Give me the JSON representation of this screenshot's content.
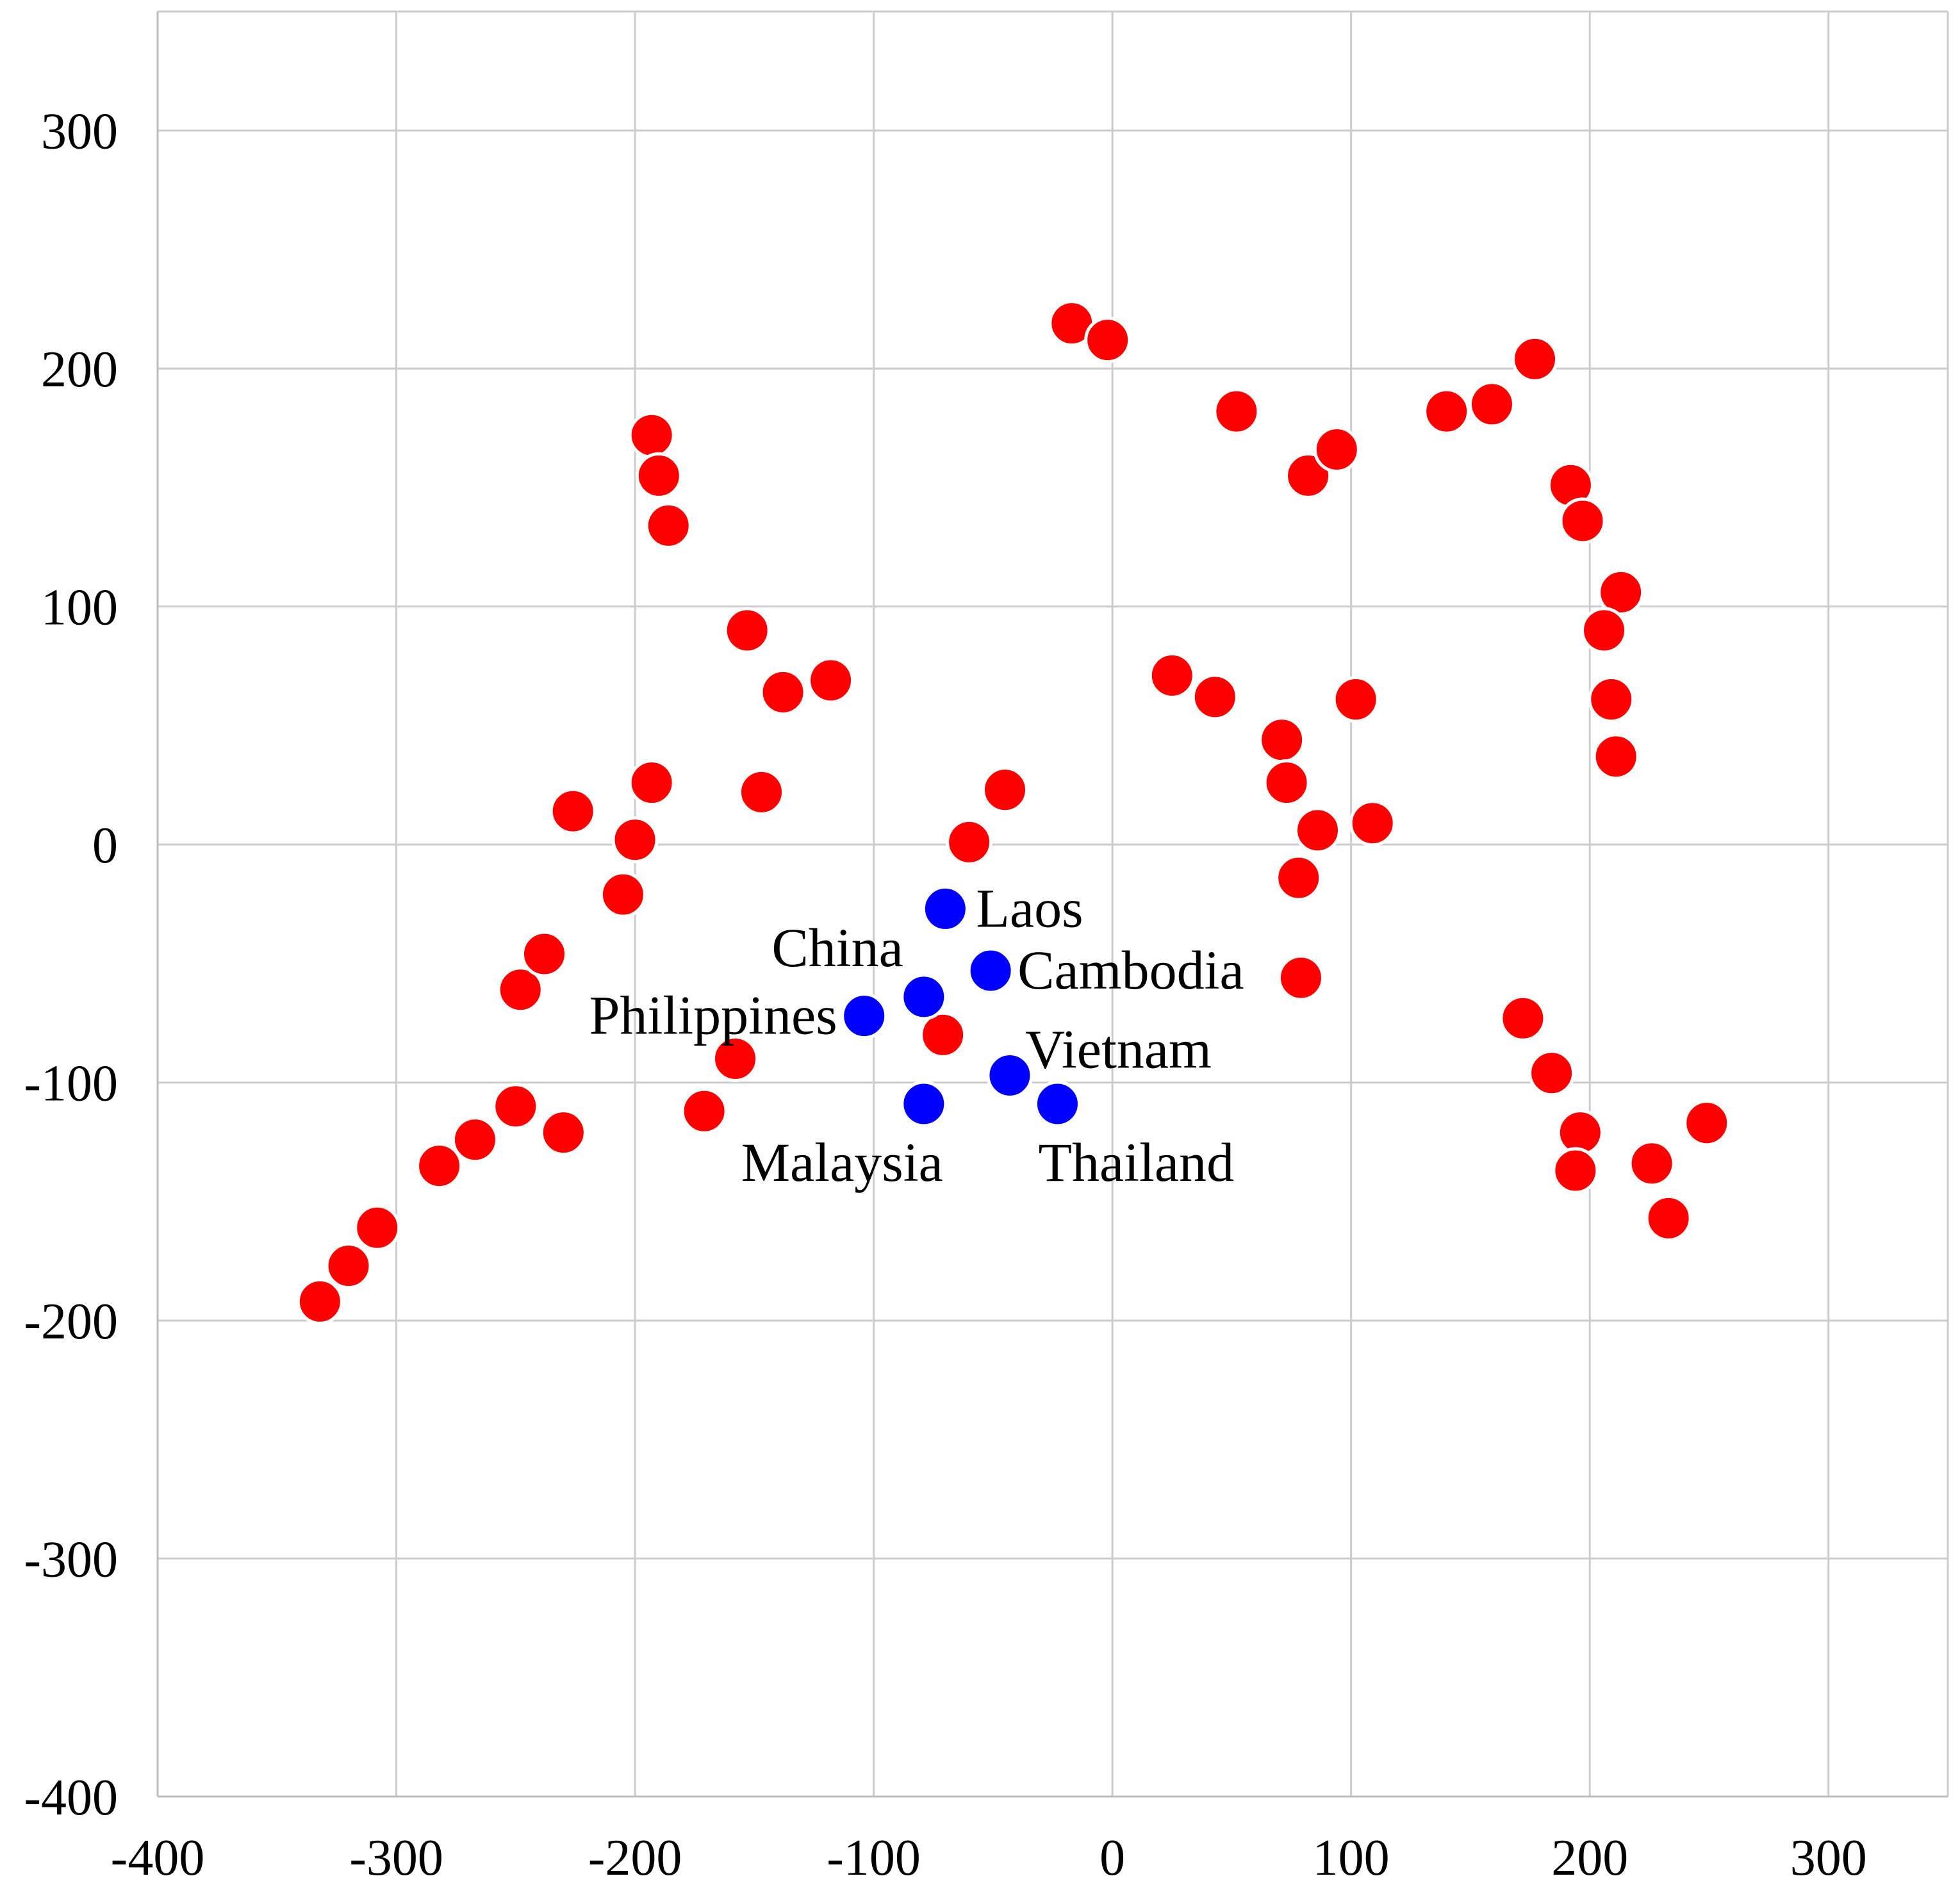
{
  "chart_data": {
    "type": "scatter",
    "title": "",
    "xlabel": "",
    "ylabel": "",
    "xlim": [
      -400,
      350
    ],
    "ylim": [
      -400,
      350
    ],
    "x_ticks": [
      -400,
      -300,
      -200,
      -100,
      0,
      100,
      200,
      300
    ],
    "y_ticks": [
      -400,
      -300,
      -200,
      -100,
      0,
      100,
      200,
      300
    ],
    "grid": true,
    "legend": "none",
    "series": [
      {
        "color": "#ff0000",
        "points": [
          {
            "x": -332,
            "y": -192
          },
          {
            "x": -320,
            "y": -177
          },
          {
            "x": -308,
            "y": -161
          },
          {
            "x": -282,
            "y": -135
          },
          {
            "x": -267,
            "y": -124
          },
          {
            "x": -250,
            "y": -110
          },
          {
            "x": -230,
            "y": -121
          },
          {
            "x": -248,
            "y": -61
          },
          {
            "x": -238,
            "y": -46
          },
          {
            "x": -226,
            "y": 14
          },
          {
            "x": -205,
            "y": -21
          },
          {
            "x": -200,
            "y": 2
          },
          {
            "x": -193,
            "y": 26
          },
          {
            "x": -193,
            "y": 172
          },
          {
            "x": -190,
            "y": 155
          },
          {
            "x": -186,
            "y": 134
          },
          {
            "x": -153,
            "y": 90
          },
          {
            "x": -138,
            "y": 64
          },
          {
            "x": -118,
            "y": 69
          },
          {
            "x": -147,
            "y": 22
          },
          {
            "x": -158,
            "y": -90
          },
          {
            "x": -171,
            "y": -112
          },
          {
            "x": -71,
            "y": -80
          },
          {
            "x": -60,
            "y": 1
          },
          {
            "x": -45,
            "y": 23
          },
          {
            "x": -17,
            "y": 219
          },
          {
            "x": -2,
            "y": 212
          },
          {
            "x": 25,
            "y": 71
          },
          {
            "x": 43,
            "y": 62
          },
          {
            "x": 52,
            "y": 182
          },
          {
            "x": 71,
            "y": 44
          },
          {
            "x": 73,
            "y": 26
          },
          {
            "x": 78,
            "y": -14
          },
          {
            "x": 79,
            "y": -56
          },
          {
            "x": 82,
            "y": 155
          },
          {
            "x": 86,
            "y": 6
          },
          {
            "x": 94,
            "y": 166
          },
          {
            "x": 102,
            "y": 61
          },
          {
            "x": 109,
            "y": 9
          },
          {
            "x": 140,
            "y": 182
          },
          {
            "x": 159,
            "y": 185
          },
          {
            "x": 177,
            "y": 204
          },
          {
            "x": 192,
            "y": 151
          },
          {
            "x": 197,
            "y": 136
          },
          {
            "x": 213,
            "y": 106
          },
          {
            "x": 206,
            "y": 90
          },
          {
            "x": 209,
            "y": 61
          },
          {
            "x": 211,
            "y": 37
          },
          {
            "x": 172,
            "y": -73
          },
          {
            "x": 184,
            "y": -96
          },
          {
            "x": 196,
            "y": -121
          },
          {
            "x": 194,
            "y": -137
          },
          {
            "x": 226,
            "y": -134
          },
          {
            "x": 233,
            "y": -157
          },
          {
            "x": 249,
            "y": -117
          }
        ]
      },
      {
        "color": "#0000ff",
        "points": [
          {
            "x": -70,
            "y": -27,
            "label": "Laos"
          },
          {
            "x": -79,
            "y": -64,
            "label": "China"
          },
          {
            "x": -51,
            "y": -53,
            "label": "Cambodia"
          },
          {
            "x": -104,
            "y": -72,
            "label": "Philippines"
          },
          {
            "x": -43,
            "y": -97,
            "label": "Vietnam"
          },
          {
            "x": -79,
            "y": -109,
            "label": "Malaysia"
          },
          {
            "x": -23,
            "y": -109,
            "label": "Thailand"
          }
        ]
      }
    ]
  }
}
